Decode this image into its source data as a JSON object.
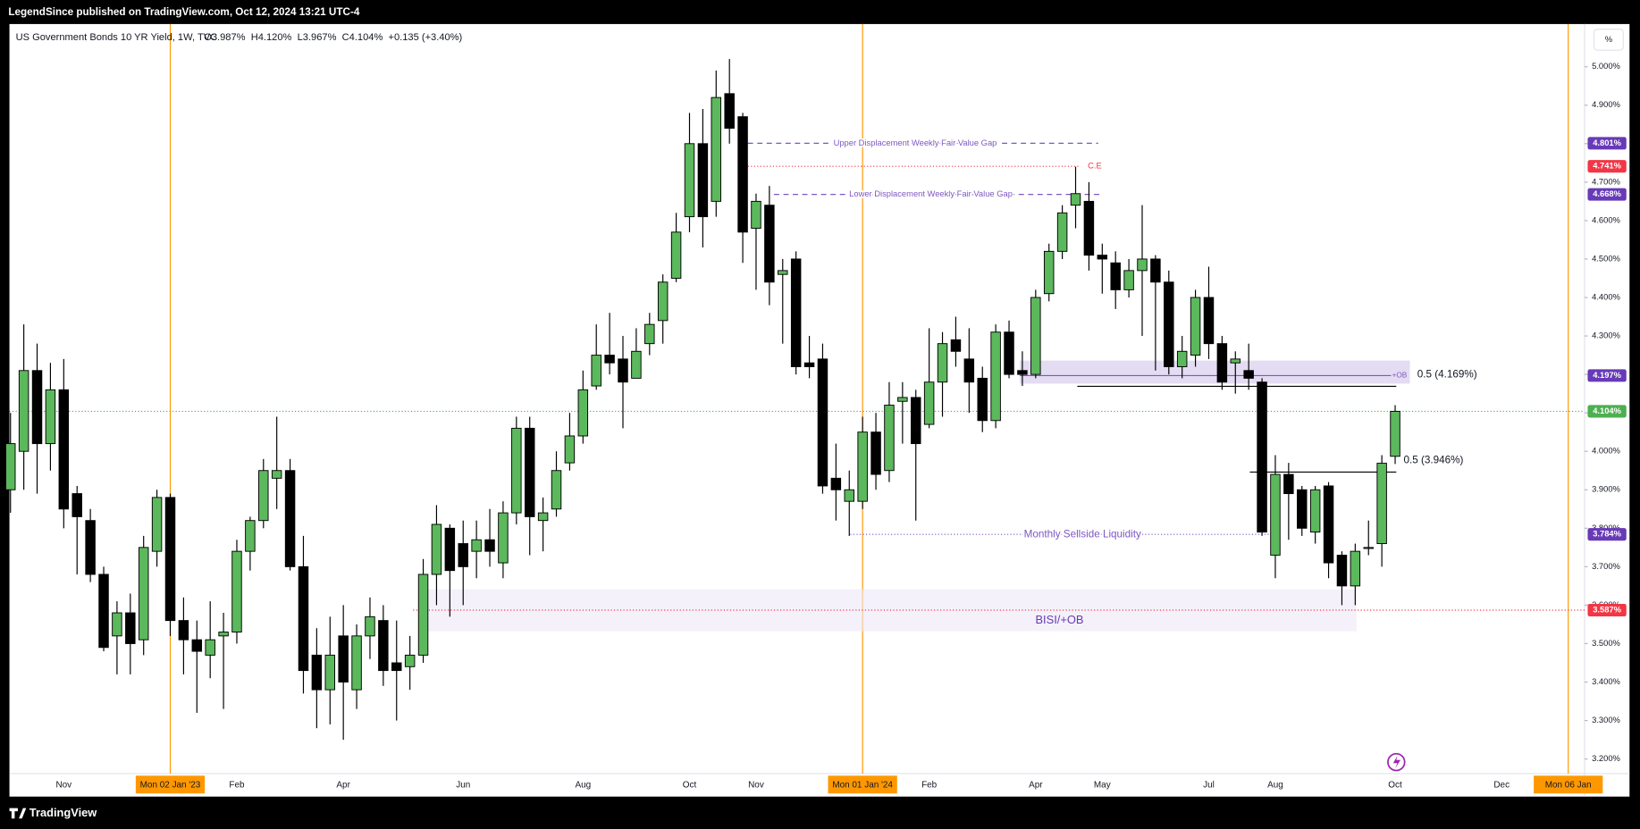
{
  "published": "LegendSince published on TradingView.com, Oct 12, 2024 13:21 UTC-4",
  "brand": "TradingView",
  "scale_button": "%",
  "chart_data": {
    "type": "candlestick",
    "title": "US Government Bonds 10 YR Yield, 1W, TVC",
    "legend": "O3.987%  H4.120%  L3.967%  C4.104%  +0.135 (+3.40%)",
    "categories": [
      null,
      null,
      null,
      null,
      "Nov",
      null,
      null,
      null,
      null,
      null,
      null,
      null,
      "Mon 02 Jan '23",
      null,
      null,
      null,
      null,
      "Feb",
      null,
      null,
      null,
      null,
      null,
      null,
      null,
      "Apr",
      null,
      null,
      null,
      null,
      null,
      null,
      null,
      null,
      "Jun",
      null,
      null,
      null,
      null,
      null,
      null,
      null,
      null,
      "Aug",
      null,
      null,
      null,
      null,
      null,
      null,
      null,
      "Oct",
      null,
      null,
      null,
      null,
      "Nov",
      null,
      null,
      null,
      null,
      null,
      null,
      null,
      "Mon 01 Jan '24",
      null,
      null,
      null,
      null,
      "Feb",
      null,
      null,
      null,
      null,
      null,
      null,
      null,
      "Apr",
      null,
      null,
      null,
      null,
      "May",
      null,
      null,
      null,
      null,
      null,
      null,
      null,
      "Jul",
      null,
      null,
      null,
      null,
      "Aug",
      null,
      null,
      null,
      null,
      null,
      null,
      null,
      null,
      "Oct",
      null,
      null,
      null,
      null,
      null,
      null,
      null,
      "Dec",
      null,
      null,
      null,
      null,
      "Mon 06 Jan",
      null
    ],
    "open": [
      3.9,
      4.0,
      4.21,
      4.02,
      4.16,
      3.89,
      3.82,
      3.68,
      3.52,
      3.58,
      3.51,
      3.74,
      3.88,
      3.56,
      3.51,
      3.47,
      3.52,
      3.53,
      3.74,
      3.82,
      3.93,
      3.95,
      3.7,
      3.47,
      3.38,
      3.52,
      3.38,
      3.52,
      3.56,
      3.45,
      3.44,
      3.47,
      3.68,
      3.8,
      3.76,
      3.74,
      3.77,
      3.71,
      3.84,
      4.06,
      3.82,
      3.85,
      3.97,
      4.04,
      4.17,
      4.25,
      4.24,
      4.19,
      4.28,
      4.34,
      4.45,
      4.61,
      4.8,
      4.65,
      4.93,
      4.87,
      4.58,
      4.64,
      4.46,
      4.5,
      4.23,
      4.24,
      3.93,
      3.87,
      3.87,
      4.05,
      3.95,
      4.13,
      4.14,
      4.07,
      4.18,
      4.29,
      4.24,
      4.19,
      4.08,
      4.31,
      4.21,
      4.2,
      4.41,
      4.52,
      4.64,
      4.65,
      4.51,
      4.49,
      4.42,
      4.47,
      4.5,
      4.44,
      4.22,
      4.25,
      4.4,
      4.28,
      4.23,
      4.21,
      4.18,
      3.73,
      3.94,
      3.9,
      3.79,
      3.91,
      3.73,
      3.65,
      3.75,
      3.76,
      3.987,
      null,
      null,
      null,
      null,
      null,
      null,
      null,
      null,
      null,
      null,
      null,
      null,
      null,
      null
    ],
    "high": [
      4.1,
      4.33,
      4.28,
      4.23,
      4.24,
      3.91,
      3.85,
      3.7,
      3.61,
      3.63,
      3.78,
      3.9,
      3.89,
      3.62,
      3.56,
      3.61,
      3.58,
      3.77,
      3.83,
      3.98,
      4.09,
      3.98,
      3.78,
      3.54,
      3.57,
      3.6,
      3.55,
      3.62,
      3.6,
      3.56,
      3.52,
      3.72,
      3.86,
      3.81,
      3.82,
      3.82,
      3.85,
      3.87,
      4.09,
      4.09,
      3.88,
      4.0,
      4.1,
      4.21,
      4.33,
      4.36,
      4.3,
      4.32,
      4.36,
      4.46,
      4.62,
      4.88,
      4.89,
      4.99,
      5.02,
      4.88,
      4.67,
      4.69,
      4.5,
      4.52,
      4.3,
      4.28,
      4.02,
      3.95,
      4.09,
      4.1,
      4.18,
      4.18,
      4.16,
      4.32,
      4.31,
      4.35,
      4.32,
      4.22,
      4.33,
      4.34,
      4.26,
      4.42,
      4.54,
      4.64,
      4.74,
      4.7,
      4.54,
      4.52,
      4.5,
      4.64,
      4.51,
      4.47,
      4.3,
      4.42,
      4.48,
      4.3,
      4.26,
      4.28,
      4.19,
      3.99,
      3.97,
      3.91,
      3.91,
      3.92,
      3.74,
      3.76,
      3.82,
      3.99,
      4.12,
      null,
      null,
      null,
      null,
      null,
      null,
      null,
      null,
      null,
      null,
      null,
      null,
      null,
      null
    ],
    "low": [
      3.84,
      3.9,
      3.89,
      3.95,
      3.8,
      3.68,
      3.66,
      3.48,
      3.42,
      3.42,
      3.47,
      3.7,
      3.52,
      3.42,
      3.32,
      3.41,
      3.33,
      3.5,
      3.69,
      3.8,
      3.85,
      3.69,
      3.37,
      3.28,
      3.29,
      3.25,
      3.33,
      3.46,
      3.39,
      3.3,
      3.38,
      3.45,
      3.6,
      3.57,
      3.6,
      3.67,
      3.7,
      3.67,
      3.81,
      3.73,
      3.74,
      3.83,
      3.95,
      4.02,
      4.16,
      4.2,
      4.06,
      4.19,
      4.25,
      4.28,
      4.44,
      4.57,
      4.53,
      4.61,
      4.8,
      4.49,
      4.42,
      4.38,
      4.28,
      4.2,
      4.19,
      3.89,
      3.82,
      3.78,
      3.85,
      3.9,
      3.92,
      4.02,
      3.82,
      4.06,
      4.09,
      4.22,
      4.1,
      4.05,
      4.06,
      4.19,
      4.17,
      4.19,
      4.39,
      4.5,
      4.58,
      4.47,
      4.41,
      4.37,
      4.4,
      4.3,
      4.21,
      4.2,
      4.19,
      4.22,
      4.24,
      4.16,
      4.15,
      4.16,
      3.78,
      3.67,
      3.77,
      3.78,
      3.76,
      3.67,
      3.6,
      3.6,
      3.73,
      3.7,
      3.967,
      null,
      null,
      null,
      null,
      null,
      null,
      null,
      null,
      null,
      null,
      null,
      null,
      null,
      null
    ],
    "close": [
      4.02,
      4.21,
      4.02,
      4.16,
      3.85,
      3.83,
      3.68,
      3.49,
      3.58,
      3.5,
      3.75,
      3.88,
      3.56,
      3.51,
      3.48,
      3.51,
      3.53,
      3.74,
      3.82,
      3.95,
      3.95,
      3.7,
      3.43,
      3.38,
      3.47,
      3.4,
      3.52,
      3.57,
      3.43,
      3.43,
      3.47,
      3.68,
      3.81,
      3.69,
      3.7,
      3.77,
      3.74,
      3.84,
      4.06,
      3.83,
      3.84,
      3.95,
      4.04,
      4.16,
      4.25,
      4.23,
      4.18,
      4.26,
      4.33,
      4.44,
      4.57,
      4.8,
      4.61,
      4.92,
      4.84,
      4.57,
      4.65,
      4.44,
      4.47,
      4.22,
      4.22,
      3.91,
      3.9,
      3.9,
      4.05,
      3.94,
      4.12,
      4.14,
      4.02,
      4.18,
      4.28,
      4.26,
      4.18,
      4.08,
      4.31,
      4.2,
      4.2,
      4.4,
      4.52,
      4.62,
      4.67,
      4.51,
      4.5,
      4.42,
      4.47,
      4.5,
      4.44,
      4.22,
      4.26,
      4.4,
      4.28,
      4.18,
      4.24,
      4.19,
      3.79,
      3.94,
      3.89,
      3.8,
      3.9,
      3.71,
      3.65,
      3.74,
      3.75,
      3.969,
      4.104,
      null,
      null,
      null,
      null,
      null,
      null,
      null,
      null,
      null,
      null,
      null,
      null,
      null,
      null
    ],
    "up_color": "#5cb85c",
    "down_color": "#000000",
    "ylim": [
      3.162,
      5.111
    ],
    "yticks": [
      {
        "value": 5.0,
        "label": "5.000%"
      },
      {
        "value": 4.9,
        "label": "4.900%"
      },
      {
        "value": 4.8,
        "label": "4.800%"
      },
      {
        "value": 4.7,
        "label": "4.700%"
      },
      {
        "value": 4.6,
        "label": "4.600%"
      },
      {
        "value": 4.5,
        "label": "4.500%"
      },
      {
        "value": 4.4,
        "label": "4.400%"
      },
      {
        "value": 4.3,
        "label": "4.300%"
      },
      {
        "value": 4.2,
        "label": "4.200%"
      },
      {
        "value": 4.1,
        "label": "4.100%"
      },
      {
        "value": 4.0,
        "label": "4.000%"
      },
      {
        "value": 3.9,
        "label": "3.900%"
      },
      {
        "value": 3.8,
        "label": "3.800%"
      },
      {
        "value": 3.7,
        "label": "3.700%"
      },
      {
        "value": 3.6,
        "label": "3.600%"
      },
      {
        "value": 3.5,
        "label": "3.500%"
      },
      {
        "value": 3.4,
        "label": "3.400%"
      },
      {
        "value": 3.3,
        "label": "3.300%"
      },
      {
        "value": 3.2,
        "label": "3.200%"
      }
    ],
    "grid": false,
    "levels": [
      {
        "value": 4.801,
        "label": "4.801%",
        "color": "#673ab7"
      },
      {
        "value": 4.741,
        "label": "4.741%",
        "color": "#f23645"
      },
      {
        "value": 4.668,
        "label": "4.668%",
        "color": "#673ab7"
      },
      {
        "value": 4.197,
        "label": "4.197%",
        "color": "#673ab7"
      },
      {
        "value": 4.104,
        "label": "4.104%",
        "color": "#4caf50"
      },
      {
        "value": 3.784,
        "label": "3.784%",
        "color": "#673ab7"
      },
      {
        "value": 3.587,
        "label": "3.587%",
        "color": "#f23645"
      }
    ],
    "annotations": [
      {
        "text": "Upper Displacement Weekly Fair Value Gap",
        "value": 4.801,
        "color": "#7e57c2"
      },
      {
        "text": "C.E",
        "value": 4.741,
        "color": "#f23645"
      },
      {
        "text": "Lower Displacement Weekly Fair Value Gap",
        "value": 4.668,
        "color": "#7e57c2"
      },
      {
        "text": "+OB",
        "value": 4.197,
        "color": "#7e57c2"
      },
      {
        "text": "0.5 (4.169%)",
        "value": 4.169,
        "color": "#000000"
      },
      {
        "text": "0.5 (3.946%)",
        "value": 3.946,
        "color": "#000000"
      },
      {
        "text": "Monthly Sellside Liquidity",
        "value": 3.784,
        "color": "#7e57c2"
      },
      {
        "text": "BISI/+OB",
        "value": 3.587,
        "color": "#f23645"
      }
    ],
    "zones": [
      {
        "top": 4.236,
        "bottom": 4.176,
        "color": "#d1c4e9"
      },
      {
        "top": 3.641,
        "bottom": 3.532,
        "color": "#ede7f6"
      }
    ]
  }
}
